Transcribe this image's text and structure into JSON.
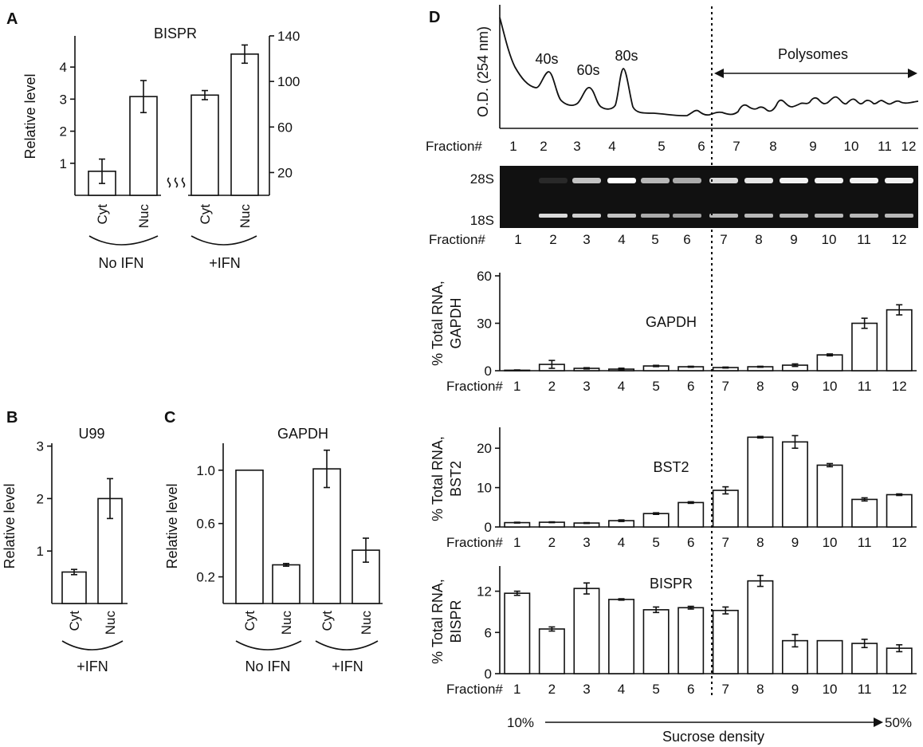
{
  "panels": {
    "A": "A",
    "B": "B",
    "C": "C",
    "D": "D"
  },
  "chart_data": [
    {
      "id": "A",
      "type": "bar",
      "title": "BISPR",
      "ylabel": "Relative level",
      "left_axis": {
        "ticks": [
          1,
          2,
          3,
          4
        ],
        "ylim": [
          0,
          4.6
        ]
      },
      "right_axis": {
        "ticks": [
          20,
          60,
          100,
          140
        ],
        "ylim": [
          0,
          140
        ]
      },
      "categories": [
        "Cyt",
        "Nuc",
        "Cyt",
        "Nuc"
      ],
      "values": [
        0.75,
        3.08,
        88,
        124
      ],
      "errors": [
        0.38,
        0.5,
        4,
        8
      ],
      "axis": [
        "left",
        "left",
        "right",
        "right"
      ],
      "groups": [
        "No IFN",
        "+IFN"
      ]
    },
    {
      "id": "B",
      "type": "bar",
      "title": "U99",
      "ylabel": "Relative level",
      "ticks": [
        1,
        2,
        3
      ],
      "ylim": [
        0,
        3.1
      ],
      "categories": [
        "Cyt",
        "Nuc"
      ],
      "values": [
        0.6,
        2.0
      ],
      "errors": [
        0.05,
        0.38
      ],
      "groups": [
        "+IFN"
      ]
    },
    {
      "id": "C",
      "type": "bar",
      "title": "GAPDH",
      "ylabel": "Relative level",
      "ticks": [
        "0.2",
        "0.6",
        "1.0"
      ],
      "ylim": [
        0,
        1.22
      ],
      "categories": [
        "Cyt",
        "Nuc",
        "Cyt",
        "Nuc"
      ],
      "values": [
        1.0,
        0.29,
        1.01,
        0.4
      ],
      "errors": [
        0,
        0.01,
        0.14,
        0.09
      ],
      "groups": [
        "No IFN",
        "+IFN"
      ]
    },
    {
      "id": "D-profile",
      "type": "line",
      "ylabel": "O.D. (254 nm)",
      "peaks": [
        "40s",
        "60s",
        "80s"
      ],
      "polysomes_label": "Polysomes",
      "xlabel": "Fraction#",
      "fractions": [
        "1",
        "2",
        "3",
        "4",
        "5",
        "6",
        "7",
        "8",
        "9",
        "10",
        "11",
        "12"
      ]
    },
    {
      "id": "D-gel",
      "type": "table",
      "bands": [
        "28S",
        "18S"
      ],
      "xlabel": "Fraction#",
      "fractions": [
        "1",
        "2",
        "3",
        "4",
        "5",
        "6",
        "7",
        "8",
        "9",
        "10",
        "11",
        "12"
      ],
      "band28_intensity": [
        0,
        0.1,
        0.75,
        1.0,
        0.7,
        0.65,
        0.85,
        0.9,
        0.95,
        0.95,
        0.95,
        0.95
      ],
      "band18_intensity": [
        0,
        0.85,
        0.8,
        0.75,
        0.65,
        0.6,
        0.7,
        0.7,
        0.7,
        0.7,
        0.7,
        0.7
      ]
    },
    {
      "id": "D-GAPDH",
      "type": "bar",
      "title": "GAPDH",
      "ylabel": [
        "% Total RNA,",
        "GAPDH"
      ],
      "ticks": [
        0,
        30,
        60
      ],
      "ylim": [
        0,
        60
      ],
      "xlabel": "Fraction#",
      "categories": [
        "1",
        "2",
        "3",
        "4",
        "5",
        "6",
        "7",
        "8",
        "9",
        "10",
        "11",
        "12"
      ],
      "values": [
        0.3,
        4,
        1.5,
        1,
        3,
        2.5,
        2,
        2.5,
        3.5,
        10,
        30,
        38.5
      ],
      "errors": [
        0.2,
        2.5,
        0.4,
        0.6,
        0.4,
        0.3,
        0.3,
        0.3,
        0.8,
        0.6,
        3.2,
        3.2
      ]
    },
    {
      "id": "D-BST2",
      "type": "bar",
      "title": "BST2",
      "ylabel": [
        "% Total RNA,",
        "BST2"
      ],
      "ticks": [
        0,
        10,
        20
      ],
      "ylim": [
        0,
        24.5
      ],
      "xlabel": "Fraction#",
      "categories": [
        "1",
        "2",
        "3",
        "4",
        "5",
        "6",
        "7",
        "8",
        "9",
        "10",
        "11",
        "12"
      ],
      "values": [
        1.1,
        1.2,
        1.0,
        1.6,
        3.4,
        6.2,
        9.3,
        22.8,
        21.6,
        15.7,
        7.0,
        8.2
      ],
      "errors": [
        0.1,
        0.1,
        0.1,
        0.2,
        0.2,
        0.2,
        0.9,
        0.2,
        1.6,
        0.4,
        0.4,
        0.2
      ]
    },
    {
      "id": "D-BISPR",
      "type": "bar",
      "title": "BISPR",
      "ylabel": [
        "% Total RNA,",
        "BISPR"
      ],
      "ticks": [
        0,
        6,
        12
      ],
      "ylim": [
        0,
        15.2
      ],
      "xlabel": "Fraction#",
      "categories": [
        "1",
        "2",
        "3",
        "4",
        "5",
        "6",
        "7",
        "8",
        "9",
        "10",
        "11",
        "12"
      ],
      "values": [
        11.7,
        6.5,
        12.4,
        10.8,
        9.3,
        9.6,
        9.2,
        13.5,
        4.8,
        4.8,
        4.4,
        3.7
      ],
      "errors": [
        0.3,
        0.3,
        0.8,
        0.1,
        0.4,
        0.2,
        0.5,
        0.8,
        0.9,
        0.0,
        0.6,
        0.5
      ]
    },
    {
      "id": "D-density",
      "type": "table",
      "start": "10%",
      "end": "50%",
      "label": "Sucrose density"
    }
  ]
}
